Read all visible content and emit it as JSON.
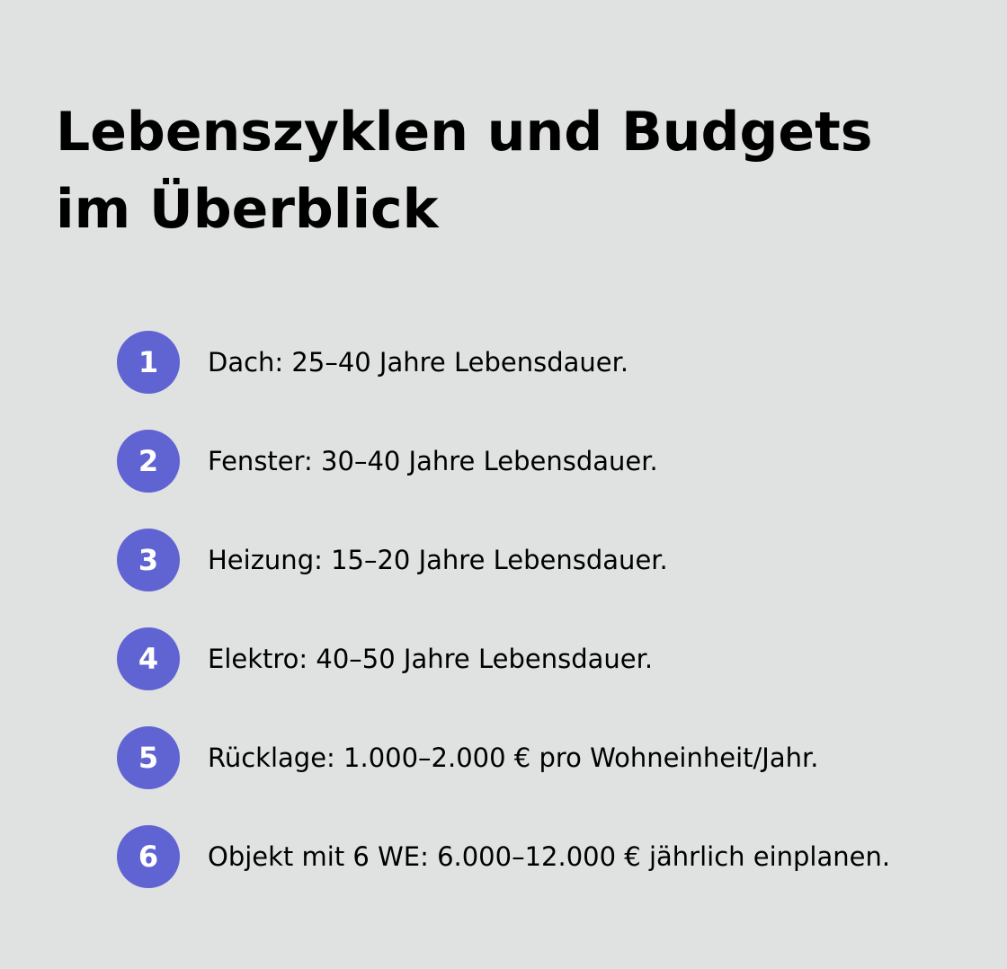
{
  "header": {
    "title": "Lebenszyklen und Budgets im Überblick"
  },
  "items": [
    {
      "number": "1",
      "text": "Dach: 25–40 Jahre Lebensdauer."
    },
    {
      "number": "2",
      "text": "Fenster: 30–40 Jahre Lebensdauer."
    },
    {
      "number": "3",
      "text": "Heizung: 15–20 Jahre Lebensdauer."
    },
    {
      "number": "4",
      "text": "Elektro: 40–50 Jahre Lebensdauer."
    },
    {
      "number": "5",
      "text": "Rücklage: 1.000–2.000 € pro Wohneinheit/Jahr."
    },
    {
      "number": "6",
      "text": "Objekt mit 6 WE: 6.000–12.000 € jährlich einplanen."
    }
  ]
}
